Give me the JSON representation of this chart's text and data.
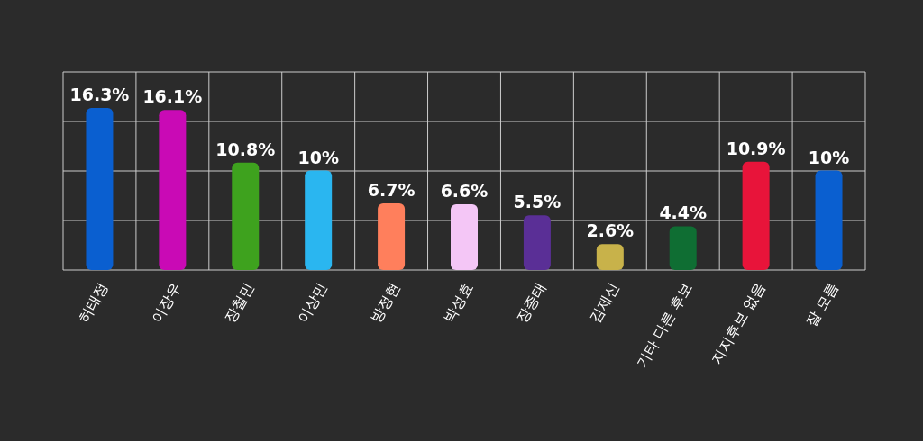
{
  "chart_data": {
    "type": "bar",
    "categories": [
      "허태정",
      "이장우",
      "장철민",
      "이상민",
      "방정현",
      "박성효",
      "장종태",
      "김제신",
      "기타 다른 후보",
      "지지후보 없음",
      "잘 모름"
    ],
    "values": [
      16.3,
      16.1,
      10.8,
      10,
      6.7,
      6.6,
      5.5,
      2.6,
      4.4,
      10.9,
      10
    ],
    "colors": [
      "#0a5fd0",
      "#c90ab5",
      "#3ea21e",
      "#2ab6f0",
      "#ff7f5c",
      "#f4c6f6",
      "#5a2f96",
      "#c8b24a",
      "#0f6e33",
      "#e8143a",
      "#0a5fd0"
    ],
    "value_labels": [
      "16.3%",
      "16.1%",
      "10.8%",
      "10%",
      "6.7%",
      "6.6%",
      "5.5%",
      "2.6%",
      "4.4%",
      "10.9%",
      "10%"
    ],
    "grid": true
  }
}
